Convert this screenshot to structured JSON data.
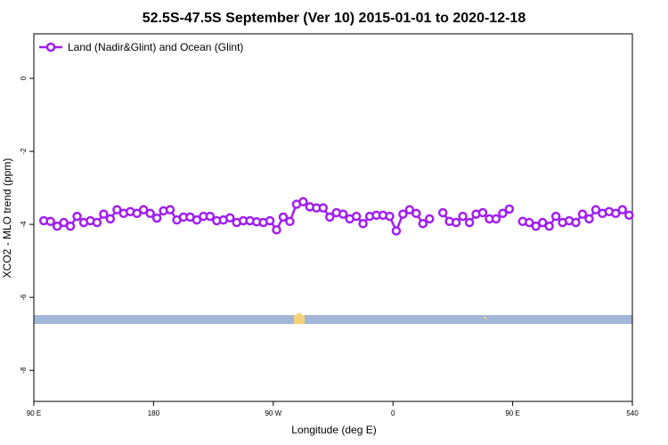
{
  "chart_data": {
    "type": "line",
    "title": "52.5S-47.5S September (Ver 10)   2015-01-01 to 2020-12-18",
    "x_label": "Longitude (deg E)",
    "y_label": "XCO2 - MLO trend (ppm)",
    "xlim": [
      90,
      540
    ],
    "xticks": [
      {
        "value": 90,
        "label": "90 E"
      },
      180,
      {
        "value": 270,
        "label": "90 W"
      },
      {
        "value": 360,
        "label": "0"
      },
      {
        "value": 450,
        "label": "90 E"
      },
      540
    ],
    "ylim": [
      -8.85,
      1.22
    ],
    "yticks": [
      0,
      -2,
      -4,
      -6,
      -8
    ],
    "legend": "top-left",
    "x": [
      97.5,
      102.5,
      107.5,
      112.5,
      117.5,
      122.5,
      127.5,
      132.5,
      137.5,
      142.5,
      147.5,
      152.5,
      157.5,
      162.5,
      167.5,
      172.5,
      177.5,
      182.5,
      187.5,
      192.5,
      197.5,
      202.5,
      207.5,
      212.5,
      217.5,
      222.5,
      227.5,
      232.5,
      237.5,
      242.5,
      247.5,
      252.5,
      257.5,
      262.5,
      267.5,
      272.5,
      277.5,
      282.5,
      287.5,
      292.5,
      297.5,
      302.5,
      307.5,
      312.5,
      317.5,
      322.5,
      327.5,
      332.5,
      337.5,
      342.5,
      347.5,
      352.5,
      357.5,
      362.5,
      367.5,
      372.5,
      377.5,
      382.5,
      387.5,
      392.5,
      397.5,
      402.5,
      407.5,
      412.5,
      417.5,
      422.5,
      427.5,
      432.5,
      437.5,
      442.5,
      447.5,
      452.5,
      457.5,
      462.5,
      467.5,
      472.5,
      477.5,
      482.5,
      487.5,
      492.5,
      497.5,
      502.5,
      507.5,
      512.5,
      517.5,
      522.5,
      527.5,
      532.5,
      537.5
    ],
    "series": [
      {
        "name": "Land (Nadir&Glint) and Ocean (Glint)",
        "color": "#a020f0",
        "values": [
          -3.9,
          -3.92,
          -4.05,
          -3.95,
          -4.05,
          -3.78,
          -3.95,
          -3.9,
          -3.95,
          -3.72,
          -3.85,
          -3.6,
          -3.7,
          -3.65,
          -3.7,
          -3.6,
          -3.7,
          -3.83,
          -3.63,
          -3.6,
          -3.88,
          -3.8,
          -3.8,
          -3.88,
          -3.78,
          -3.78,
          -3.9,
          -3.88,
          -3.82,
          -3.95,
          -3.9,
          -3.9,
          -3.93,
          -3.95,
          -3.9,
          -4.15,
          -3.8,
          -3.92,
          -3.45,
          -3.38,
          -3.52,
          -3.55,
          -3.55,
          -3.8,
          -3.68,
          -3.72,
          -3.85,
          -3.78,
          -3.98,
          -3.78,
          -3.75,
          -3.75,
          -3.78,
          -4.18,
          -3.72,
          -3.6,
          -3.7,
          -3.98,
          -3.85,
          null,
          -3.68,
          -3.92,
          -3.95,
          -3.78,
          -3.95,
          -3.72,
          -3.68,
          -3.85,
          -3.85,
          -3.7,
          -3.58,
          null,
          -3.92,
          -3.95,
          -4.05,
          -3.95,
          -4.05,
          -3.78,
          -3.95,
          -3.9,
          -3.95,
          -3.72,
          -3.85,
          -3.6,
          -3.7,
          -3.65,
          -3.7,
          -3.6,
          -3.75
        ]
      }
    ]
  }
}
